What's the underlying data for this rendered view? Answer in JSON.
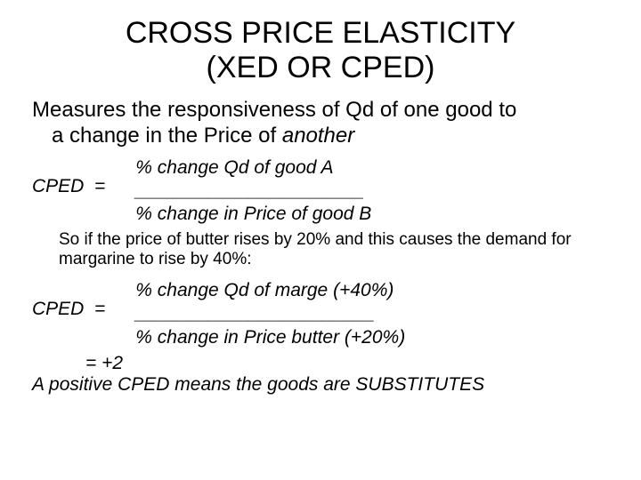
{
  "title_line1": "CROSS PRICE ELASTICITY",
  "title_line2": "(XED OR CPED)",
  "lead_line1": "Measures the responsiveness of Qd of one good to",
  "lead_line2": "a change in the Price of ",
  "lead_line2_em": "another",
  "formula1": {
    "lhs": "CPED  =",
    "numerator": "% change Qd of good A",
    "rule": "______________________",
    "denominator": "% change in Price of good B"
  },
  "note_line1": "So if the price of butter rises by 20% and this causes the demand for",
  "note_line2": "margarine to rise by 40%:",
  "formula2": {
    "lhs": "CPED  =",
    "numerator": "% change Qd of marge (+40%)",
    "rule": "_______________________",
    "denominator": "% change in Price butter (+20%)"
  },
  "result": "= +2",
  "conclusion": "A positive CPED means the goods are SUBSTITUTES",
  "colors": {
    "background": "#ffffff",
    "text": "#000000"
  }
}
